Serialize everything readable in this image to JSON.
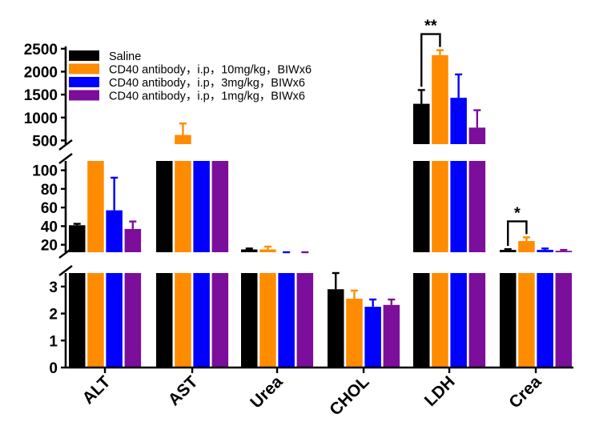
{
  "chart_data": {
    "type": "bar",
    "title": "",
    "xlabel": "",
    "ylabel": "",
    "y_axis_break": true,
    "segments": [
      {
        "range": [
          0,
          3.5
        ],
        "ticks": [
          0,
          1,
          2,
          3
        ]
      },
      {
        "range": [
          12,
          110
        ],
        "ticks": [
          20,
          40,
          60,
          80,
          100
        ]
      },
      {
        "range": [
          420,
          2550
        ],
        "ticks": [
          500,
          1000,
          1500,
          2000,
          2500
        ]
      }
    ],
    "categories": [
      "ALT",
      "AST",
      "Urea",
      "CHOL",
      "LDH",
      "Crea"
    ],
    "series": [
      {
        "name": "Saline",
        "color": "#000000",
        "values": [
          41,
          300,
          15,
          2.9,
          1300,
          14.5
        ],
        "errors": [
          1.5,
          null,
          1,
          0.6,
          300,
          0.8
        ]
      },
      {
        "name": "CD40 antibody，i.p，10mg/kg，BIWx6",
        "color": "#FF8C00",
        "values": [
          250,
          620,
          15,
          2.55,
          2360,
          24
        ],
        "errors": [
          null,
          250,
          3,
          0.3,
          110,
          4
        ]
      },
      {
        "name": "CD40 antibody，i.p，3mg/kg，BIWx6",
        "color": "#0000FF",
        "values": [
          57,
          300,
          11.5,
          2.25,
          1430,
          14.5
        ],
        "errors": [
          35,
          null,
          0.5,
          0.27,
          510,
          1.5
        ]
      },
      {
        "name": "CD40 antibody，i.p，1mg/kg，BIWx6",
        "color": "#7B0E9A",
        "values": [
          37,
          300,
          11,
          2.32,
          780,
          13.5
        ],
        "errors": [
          8,
          null,
          1,
          0.2,
          380,
          1
        ]
      }
    ],
    "significance": [
      {
        "category": "LDH",
        "from_series": 0,
        "to_series": 1,
        "label": "**"
      },
      {
        "category": "Crea",
        "from_series": 0,
        "to_series": 1,
        "label": "*"
      }
    ],
    "legend_position": "top-left"
  }
}
